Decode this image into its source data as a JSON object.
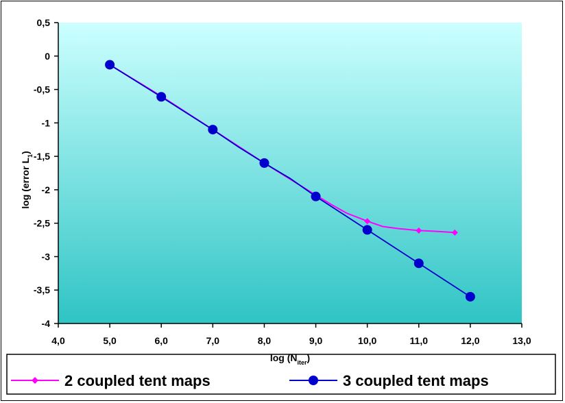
{
  "chart_data": {
    "type": "line",
    "xlabel": "log (N",
    "xlabel_sub": "iter",
    "xlabel_close": ")",
    "ylabel": "log (error L",
    "ylabel_sub": "1",
    "ylabel_close": ")",
    "xlim": [
      4.0,
      13.0
    ],
    "ylim": [
      -4,
      0.5
    ],
    "xticks": [
      "4,0",
      "5,0",
      "6,0",
      "7,0",
      "8,0",
      "9,0",
      "10,0",
      "11,0",
      "12,0",
      "13,0"
    ],
    "yticks": [
      "0,5",
      "0",
      "-0,5",
      "-1",
      "-1,5",
      "-2",
      "-2,5",
      "-3",
      "-3,5",
      "-4"
    ],
    "grid": false,
    "legend_position": "bottom",
    "series": [
      {
        "name": "2 coupled tent maps",
        "color": "#ff00ff",
        "marker": "diamond",
        "x": [
          5.0,
          6.0,
          7.0,
          8.0,
          9.0,
          9.3,
          9.6,
          10.0,
          10.3,
          10.6,
          11.0,
          11.3,
          11.7
        ],
        "y": [
          -0.13,
          -0.6,
          -1.1,
          -1.6,
          -2.08,
          -2.22,
          -2.35,
          -2.47,
          -2.55,
          -2.58,
          -2.61,
          -2.62,
          -2.64
        ],
        "markers_x": [
          5.0,
          6.0,
          7.0,
          8.0,
          9.0,
          10.0,
          11.0,
          11.7
        ],
        "markers_y": [
          -0.13,
          -0.6,
          -1.1,
          -1.6,
          -2.08,
          -2.47,
          -2.61,
          -2.64
        ]
      },
      {
        "name": "3 coupled tent maps",
        "color": "#0000cc",
        "marker": "circle",
        "x": [
          5.0,
          6.0,
          7.0,
          7.5,
          8.0,
          8.5,
          9.0,
          10.0,
          11.0,
          12.0
        ],
        "y": [
          -0.13,
          -0.61,
          -1.1,
          -1.36,
          -1.6,
          -1.83,
          -2.1,
          -2.6,
          -3.1,
          -3.6
        ],
        "markers_x": [
          5.0,
          6.0,
          7.0,
          8.0,
          9.0,
          10.0,
          11.0,
          12.0
        ],
        "markers_y": [
          -0.13,
          -0.61,
          -1.1,
          -1.6,
          -2.1,
          -2.6,
          -3.1,
          -3.6
        ]
      }
    ]
  }
}
